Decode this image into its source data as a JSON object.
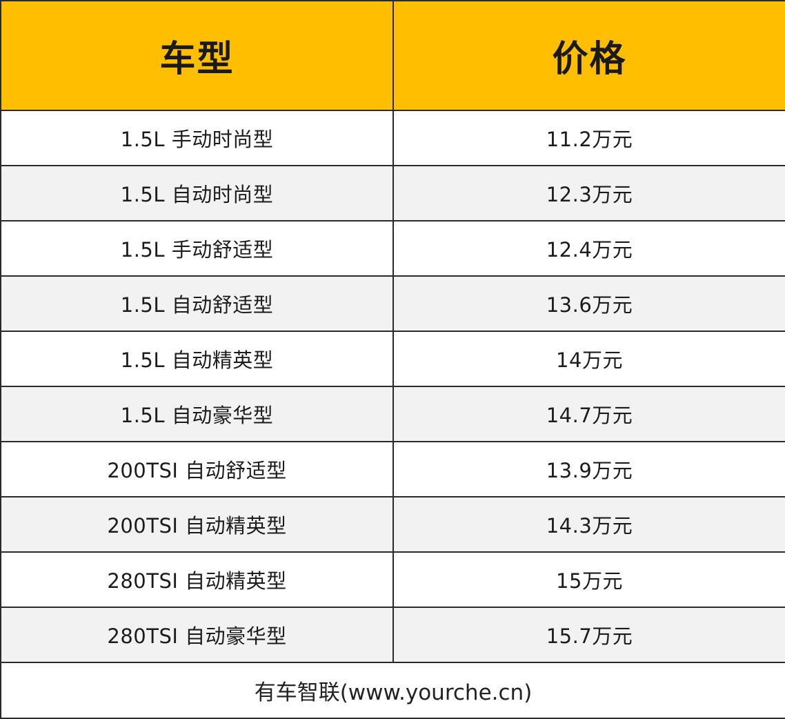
{
  "table": {
    "headers": {
      "model": "车型",
      "price": "价格"
    },
    "rows": [
      {
        "model": "1.5L 手动时尚型",
        "price": "11.2万元"
      },
      {
        "model": "1.5L 自动时尚型",
        "price": "12.3万元"
      },
      {
        "model": "1.5L 手动舒适型",
        "price": "12.4万元"
      },
      {
        "model": "1.5L 自动舒适型",
        "price": "13.6万元"
      },
      {
        "model": "1.5L 自动精英型",
        "price": "14万元"
      },
      {
        "model": "1.5L 自动豪华型",
        "price": "14.7万元"
      },
      {
        "model": "200TSI 自动舒适型",
        "price": "13.9万元"
      },
      {
        "model": "200TSI 自动精英型",
        "price": "14.3万元"
      },
      {
        "model": "280TSI 自动精英型",
        "price": "15万元"
      },
      {
        "model": "280TSI 自动豪华型",
        "price": "15.7万元"
      }
    ],
    "footer": "有车智联(www.yourche.cn)"
  },
  "colors": {
    "header_background": "#ffbf00",
    "alternate_row_background": "#f2f2f2",
    "border": "#2a2a2a"
  }
}
